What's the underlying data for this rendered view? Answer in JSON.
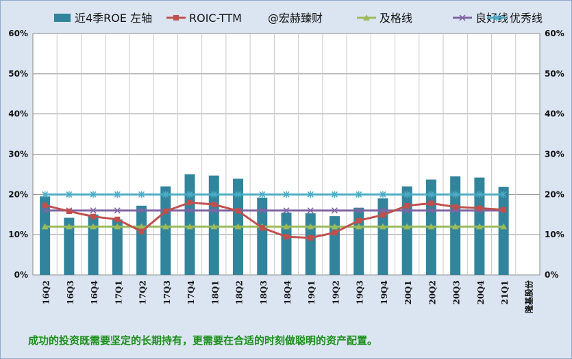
{
  "caption": "成功的投资既需要坚定的长期持有，更需要在合适的时刻做聪明的资产配置。",
  "chart_data": {
    "type": "bar",
    "categories": [
      "16Q2",
      "16Q3",
      "16Q4",
      "17Q1",
      "17Q2",
      "17Q3",
      "17Q4",
      "18Q1",
      "18Q2",
      "18Q3",
      "18Q4",
      "19Q1",
      "19Q2",
      "19Q3",
      "19Q4",
      "20Q1",
      "20Q2",
      "20Q3",
      "20Q4",
      "21Q1",
      "隆基股份"
    ],
    "y_ticks": [
      "0%",
      "10%",
      "20%",
      "30%",
      "40%",
      "50%",
      "60%"
    ],
    "ylim": [
      0,
      60
    ],
    "grid": true,
    "legend_position": "top",
    "watermark": "@宏赫臻财",
    "series": [
      {
        "name": "近4季ROE 左轴",
        "kind": "bar",
        "color": "#31849b",
        "values": [
          19.5,
          14.2,
          15.0,
          13.8,
          17.2,
          22.0,
          25.0,
          24.7,
          23.9,
          19.2,
          15.5,
          15.3,
          14.6,
          16.7,
          19.0,
          22.0,
          23.7,
          24.5,
          24.2,
          21.9,
          null
        ]
      },
      {
        "name": "ROIC-TTM",
        "kind": "line",
        "marker": "square",
        "color": "#c0504d",
        "values": [
          17.3,
          15.8,
          14.5,
          13.8,
          10.8,
          15.8,
          18.0,
          17.5,
          15.9,
          11.7,
          9.5,
          9.2,
          10.5,
          13.5,
          14.9,
          17.2,
          17.8,
          16.9,
          16.6,
          16.2,
          null
        ]
      },
      {
        "name": "及格线",
        "kind": "line",
        "marker": "triangle",
        "color": "#9bbb59",
        "values": [
          12,
          12,
          12,
          12,
          12,
          12,
          12,
          12,
          12,
          12,
          12,
          12,
          12,
          12,
          12,
          12,
          12,
          12,
          12,
          12,
          null
        ]
      },
      {
        "name": "良好线",
        "kind": "line",
        "marker": "x",
        "color": "#8064a2",
        "values": [
          16,
          16,
          16,
          16,
          16,
          16,
          16,
          16,
          16,
          16,
          16,
          16,
          16,
          16,
          16,
          16,
          16,
          16,
          16,
          16,
          null
        ]
      },
      {
        "name": "优秀线",
        "kind": "line",
        "marker": "star",
        "color": "#4bacc6",
        "values": [
          20,
          20,
          20,
          20,
          20,
          20,
          20,
          20,
          20,
          20,
          20,
          20,
          20,
          20,
          20,
          20,
          20,
          20,
          20,
          20,
          null
        ]
      }
    ]
  }
}
